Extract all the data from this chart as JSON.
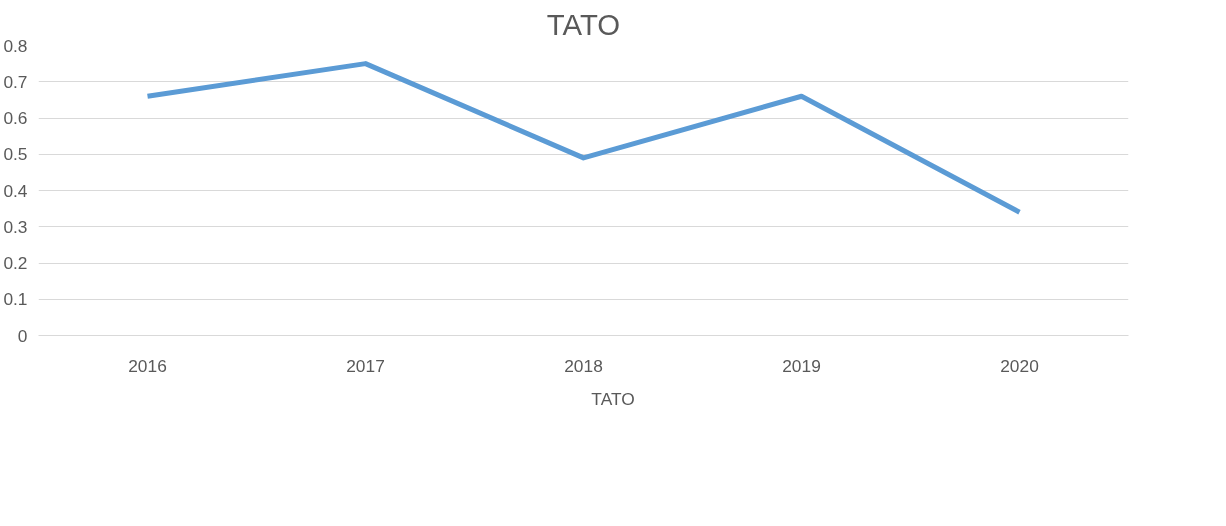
{
  "chart_data": {
    "type": "line",
    "title": "TATO",
    "categories": [
      "2016",
      "2017",
      "2018",
      "2019",
      "2020"
    ],
    "series": [
      {
        "name": "TATO",
        "color": "#5b9bd5",
        "values": [
          0.66,
          0.75,
          0.49,
          0.66,
          0.34
        ]
      }
    ],
    "ylim": [
      0,
      0.8
    ],
    "yticks": [
      0,
      0.1,
      0.2,
      0.3,
      0.4,
      0.5,
      0.6,
      0.7,
      0.8
    ],
    "grid": "y",
    "legend": "bottom",
    "marker": "none",
    "line_style": "solid"
  }
}
